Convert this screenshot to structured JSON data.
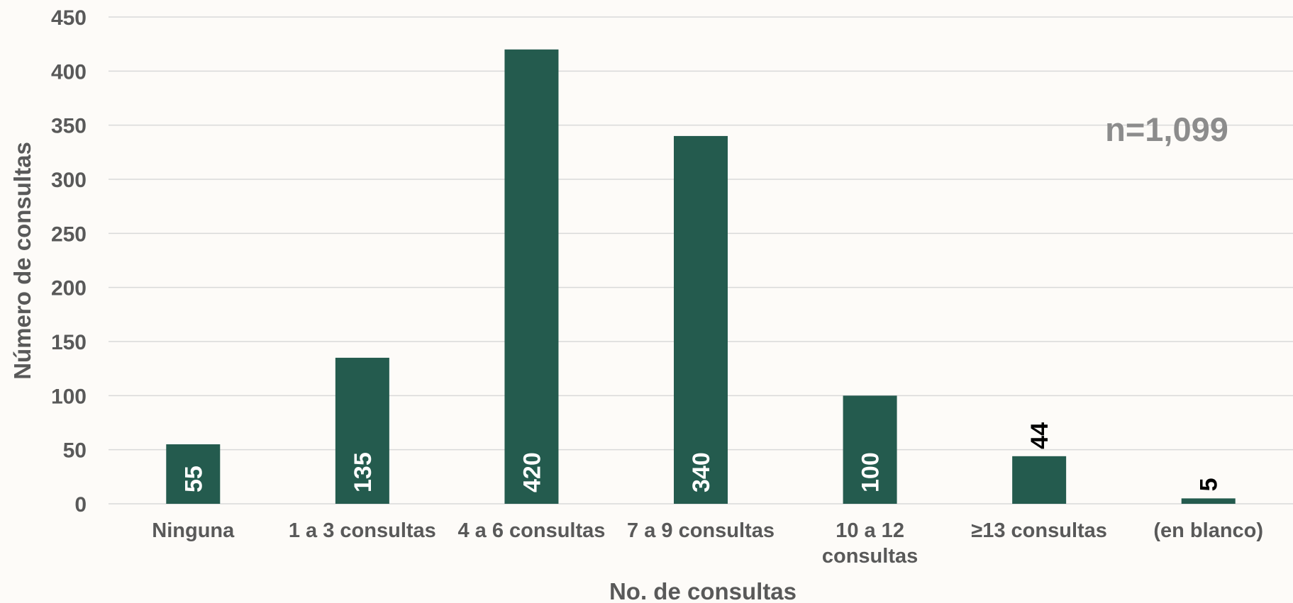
{
  "chart_data": {
    "type": "bar",
    "categories": [
      [
        "Ninguna"
      ],
      [
        "1 a 3 consultas"
      ],
      [
        "4 a 6 consultas"
      ],
      [
        "7 a 9 consultas"
      ],
      [
        "10 a 12",
        "consultas"
      ],
      [
        "≥13 consultas"
      ],
      [
        "(en blanco)"
      ]
    ],
    "values": [
      55,
      135,
      420,
      340,
      100,
      44,
      5
    ],
    "data_labels": [
      "55",
      "135",
      "420",
      "340",
      "100",
      "44",
      "5"
    ],
    "title": "",
    "xlabel": "No. de consultas",
    "ylabel": "Número de consultas",
    "ylim": [
      0,
      450
    ],
    "yticks": [
      0,
      50,
      100,
      150,
      200,
      250,
      300,
      350,
      400,
      450
    ],
    "annotation": "n=1,099",
    "grid": true,
    "legend": "none",
    "colors": {
      "bar": "#245b4e",
      "label_inside": "#ffffff",
      "label_outside": "#000000",
      "gridline": "#d9d9d9",
      "text": "#595959",
      "annotation": "#8c8c8c"
    }
  }
}
